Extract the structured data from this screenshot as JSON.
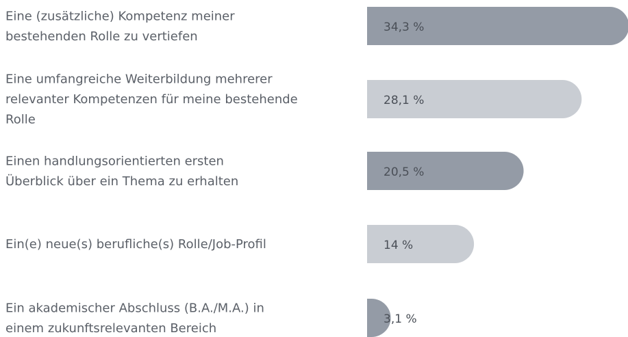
{
  "chart_data": {
    "type": "bar",
    "categories": [
      "Eine (zusätzliche) Kompetenz meiner\nbestehenden Rolle zu vertiefen",
      "Eine umfangreiche Weiterbildung mehrerer\nrelevanter Kompetenzen für meine bestehende\nRolle",
      "Einen handlungsorientierten ersten\nÜberblick über ein Thema zu erhalten",
      "Ein(e) neue(s) berufliche(s) Rolle/Job-Profil",
      "Ein akademischer Abschluss (B.A./M.A.) in\neinem zukunftsrelevanten Bereich"
    ],
    "values": [
      34.3,
      28.1,
      20.5,
      14,
      3.1
    ],
    "value_labels": [
      "34,3 %",
      "28,1 %",
      "20,5 %",
      "14 %",
      "3,1 %"
    ],
    "colors": [
      "#949ba6",
      "#c9cdd3",
      "#949ba6",
      "#c9cdd3",
      "#949ba6"
    ]
  }
}
